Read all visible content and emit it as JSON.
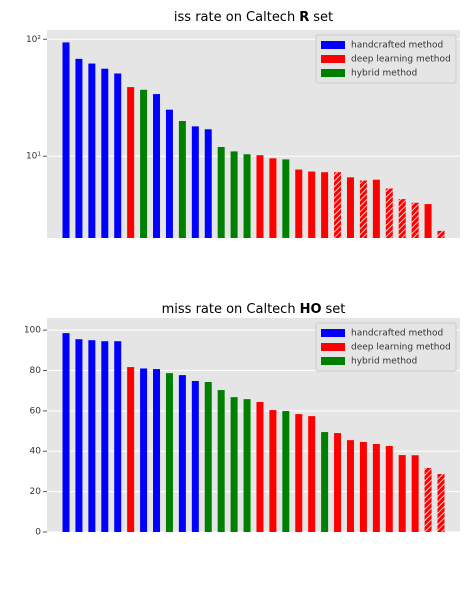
{
  "chart_data": [
    {
      "type": "bar",
      "title": [
        "iss rate on Caltech",
        "R",
        "set"
      ],
      "log": true,
      "grid": true,
      "legend": "upper right",
      "categories": [
        null,
        null,
        null,
        null,
        null,
        null,
        null,
        null,
        null,
        null,
        null,
        null,
        null,
        null,
        null,
        null,
        null,
        null,
        null,
        null,
        null,
        null,
        null,
        null,
        null,
        null,
        null,
        null,
        null,
        null
      ],
      "ylim": [
        2,
        120
      ],
      "yticks": [
        {
          "value": 10,
          "label": "10¹"
        },
        {
          "value": 100,
          "label": "10²"
        }
      ],
      "hatch": [
        false,
        false,
        false,
        false,
        false,
        false,
        false,
        false,
        false,
        false,
        false,
        false,
        false,
        false,
        false,
        false,
        false,
        false,
        false,
        false,
        false,
        true,
        false,
        true,
        false,
        true,
        true,
        true,
        false,
        true
      ],
      "series": [
        {
          "name": "handcrafted method",
          "color": "#0000ff",
          "values": [
            94,
            68,
            62,
            56,
            51,
            null,
            null,
            34,
            25,
            null,
            18,
            17,
            null,
            null,
            null,
            null,
            null,
            null,
            null,
            null,
            null,
            null,
            null,
            null,
            null,
            null,
            null,
            null,
            null,
            null
          ]
        },
        {
          "name": "deep learning method",
          "color": "#ff0000",
          "values": [
            null,
            null,
            null,
            null,
            null,
            39,
            null,
            null,
            null,
            null,
            null,
            null,
            null,
            null,
            null,
            10.2,
            9.6,
            null,
            7.7,
            7.4,
            7.3,
            7.3,
            6.6,
            6.2,
            6.3,
            5.3,
            4.3,
            4.0,
            3.9,
            2.3
          ]
        },
        {
          "name": "hybrid method",
          "color": "#008000",
          "values": [
            null,
            null,
            null,
            null,
            null,
            null,
            37,
            null,
            null,
            20,
            null,
            null,
            12,
            11,
            10.4,
            null,
            null,
            9.4,
            null,
            null,
            null,
            null,
            null,
            null,
            null,
            null,
            null,
            null,
            null,
            null
          ]
        }
      ]
    },
    {
      "type": "bar",
      "title": [
        "miss rate on Caltech",
        "HO",
        "set"
      ],
      "log": false,
      "grid": true,
      "legend": "upper right",
      "categories": [
        null,
        null,
        null,
        null,
        null,
        null,
        null,
        null,
        null,
        null,
        null,
        null,
        null,
        null,
        null,
        null,
        null,
        null,
        null,
        null,
        null,
        null,
        null,
        null,
        null,
        null,
        null,
        null,
        null,
        null
      ],
      "ylim": [
        0,
        106
      ],
      "yticks": [
        0,
        20,
        40,
        60,
        80,
        100
      ],
      "hatch": [
        false,
        false,
        false,
        false,
        false,
        false,
        false,
        false,
        false,
        false,
        false,
        false,
        false,
        false,
        false,
        false,
        false,
        false,
        false,
        false,
        false,
        false,
        false,
        false,
        false,
        false,
        false,
        false,
        true,
        true
      ],
      "series": [
        {
          "name": "handcrafted method",
          "color": "#0000ff",
          "values": [
            98.5,
            95.5,
            95,
            94.5,
            94.5,
            null,
            81,
            80.7,
            null,
            77.7,
            74.8,
            null,
            null,
            null,
            null,
            null,
            null,
            null,
            null,
            null,
            null,
            null,
            null,
            null,
            null,
            null,
            null,
            null,
            null,
            null
          ]
        },
        {
          "name": "deep learning method",
          "color": "#ff0000",
          "values": [
            null,
            null,
            null,
            null,
            null,
            81.7,
            null,
            null,
            null,
            null,
            null,
            null,
            null,
            null,
            null,
            64.4,
            60.4,
            null,
            58.4,
            57.4,
            null,
            49,
            45.5,
            44.6,
            43.6,
            42.6,
            38.1,
            38,
            31.7,
            28.7
          ]
        },
        {
          "name": "hybrid method",
          "color": "#008000",
          "values": [
            null,
            null,
            null,
            null,
            null,
            null,
            null,
            null,
            78.7,
            null,
            null,
            74.3,
            70.3,
            66.8,
            65.8,
            null,
            null,
            59.9,
            null,
            null,
            49.5,
            null,
            null,
            null,
            null,
            null,
            null,
            null,
            null,
            null
          ]
        }
      ]
    }
  ]
}
